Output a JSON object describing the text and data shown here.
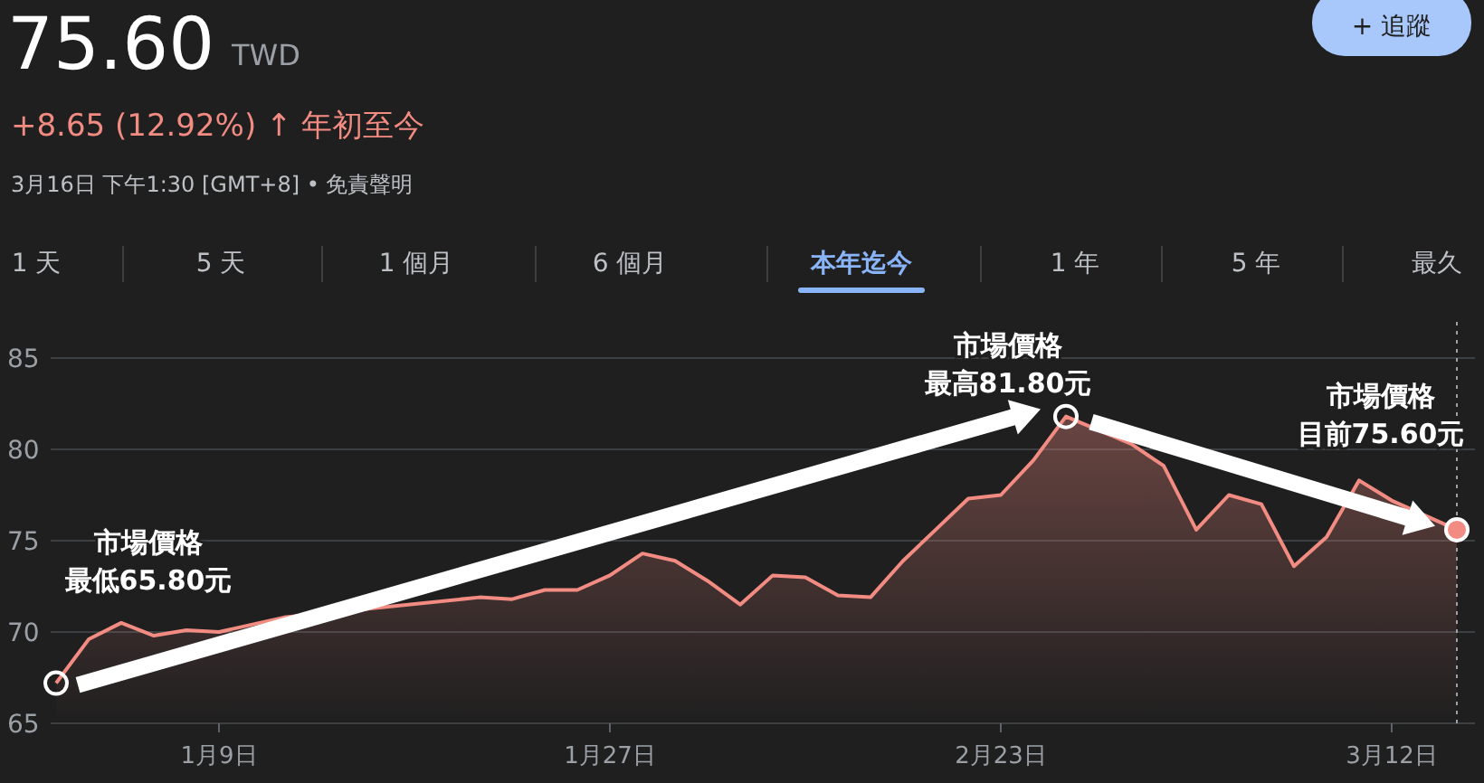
{
  "chart_data": {
    "type": "area",
    "title": "75.60",
    "subtitle": "+8.65 (12.92%) ↑ 年初至今",
    "annotations": [
      "TWD",
      "3月16日 下午1:30 [GMT+8] • 免責聲明",
      "+ 追蹤",
      "1 天",
      "5 天",
      "1 個月",
      "6 個月",
      "本年迄今",
      "1 年",
      "5 年",
      "最久",
      "市場價格",
      "最低65.80元",
      "市場價格",
      "最高81.80元",
      "市場價格",
      "目前75.60元"
    ],
    "categories": [
      null,
      null,
      null,
      null,
      null,
      "1月9日",
      null,
      null,
      null,
      null,
      null,
      null,
      null,
      null,
      null,
      null,
      null,
      "1月27日",
      null,
      null,
      null,
      null,
      null,
      null,
      null,
      null,
      null,
      null,
      null,
      "2月23日",
      null,
      null,
      null,
      null,
      null,
      null,
      null,
      null,
      null,
      null,
      null,
      "3月12日",
      null,
      null
    ],
    "series": [
      {
        "color": "#f28b82",
        "values": [
          67.2,
          69.6,
          70.5,
          69.8,
          70.1,
          70.0,
          70.4,
          70.8,
          null,
          null,
          null,
          null,
          null,
          71.9,
          71.8,
          72.3,
          72.3,
          73.1,
          74.3,
          73.9,
          72.8,
          71.5,
          73.1,
          73.0,
          72.0,
          71.9,
          73.9,
          75.6,
          77.3,
          77.5,
          79.4,
          81.8,
          null,
          80.3,
          79.1,
          75.6,
          77.5,
          77.0,
          73.6,
          75.2,
          78.3,
          77.2,
          null,
          75.6
        ]
      }
    ],
    "ylim": [
      65,
      85
    ],
    "yticks": [
      65,
      70,
      75,
      80,
      85
    ],
    "grid": "y"
  }
}
